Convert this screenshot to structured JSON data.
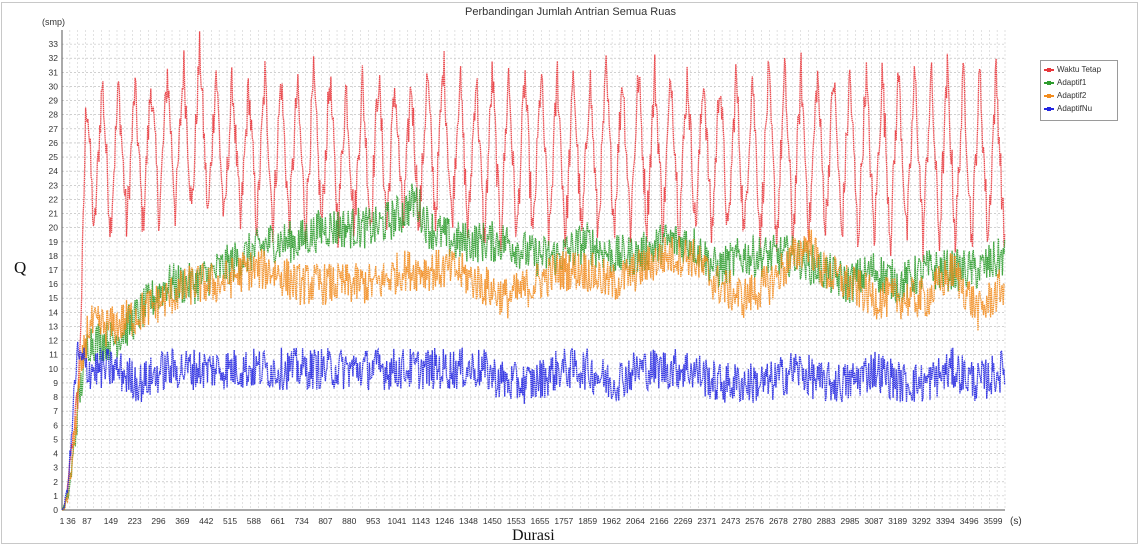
{
  "chart_data": {
    "type": "line",
    "title": "Perbandingan  Jumlah Antrian Semua Ruas",
    "xlabel": "Durasi",
    "ylabel": "Q",
    "y_unit": "(smp)",
    "x_unit": "(s)",
    "xlim": [
      1,
      3599
    ],
    "ylim": [
      0,
      34
    ],
    "grid": true,
    "legend_position": "top-right",
    "x_tick_labels": [
      "1",
      "36",
      "87",
      "149",
      "223",
      "296",
      "369",
      "442",
      "515",
      "588",
      "661",
      "734",
      "807",
      "880",
      "953",
      "1041",
      "1143",
      "1246",
      "1348",
      "1450",
      "1553",
      "1655",
      "1757",
      "1859",
      "1962",
      "2064",
      "2166",
      "2269",
      "2371",
      "2473",
      "2576",
      "2678",
      "2780",
      "2883",
      "2985",
      "3087",
      "3189",
      "3292",
      "3394",
      "3496",
      "3599"
    ],
    "y_tick_labels": [
      "0",
      "1",
      "2",
      "3",
      "4",
      "5",
      "6",
      "7",
      "8",
      "9",
      "10",
      "11",
      "12",
      "13",
      "14",
      "15",
      "16",
      "17",
      "18",
      "19",
      "20",
      "21",
      "22",
      "23",
      "24",
      "25",
      "26",
      "27",
      "28",
      "29",
      "30",
      "31",
      "32",
      "33"
    ],
    "series": [
      {
        "name": "Waktu Tetap",
        "color": "#e8373c",
        "x": [
          1,
          100,
          200,
          300,
          400,
          500,
          515,
          600,
          700,
          800,
          900,
          1000,
          1100,
          1200,
          1300,
          1400,
          1450,
          1500,
          1600,
          1700,
          1800,
          1900,
          2000,
          2100,
          2200,
          2300,
          2400,
          2500,
          2600,
          2700,
          2800,
          2900,
          3000,
          3100,
          3200,
          3300,
          3400,
          3500,
          3599
        ],
        "peak": [
          0,
          31,
          30,
          30,
          31,
          32,
          33,
          31,
          30,
          31,
          30,
          31,
          30,
          31,
          30,
          31,
          32,
          31,
          31,
          31,
          31,
          31,
          31,
          31,
          31,
          31,
          31,
          31,
          31,
          31,
          31,
          31,
          31,
          31,
          31,
          31,
          31,
          31,
          31
        ],
        "trough": [
          0,
          19,
          20,
          20,
          21,
          21,
          21,
          20,
          20,
          20,
          20,
          20,
          20,
          20,
          20,
          20,
          21,
          20,
          19,
          19,
          19,
          19,
          19,
          20,
          20,
          20,
          20,
          19,
          19,
          19,
          19,
          20,
          19,
          19,
          19,
          19,
          19,
          19,
          19
        ]
      },
      {
        "name": "Adaptif1",
        "color": "#2e9c2e",
        "x": [
          1,
          100,
          200,
          300,
          400,
          500,
          600,
          700,
          800,
          900,
          1000,
          1100,
          1200,
          1300,
          1350,
          1400,
          1500,
          1600,
          1700,
          1800,
          1900,
          2000,
          2100,
          2200,
          2300,
          2400,
          2500,
          2600,
          2700,
          2800,
          2900,
          3000,
          3100,
          3200,
          3300,
          3400,
          3500,
          3599
        ],
        "values": [
          0,
          12,
          12,
          14,
          16,
          16,
          17,
          18,
          19,
          19,
          20,
          20,
          20,
          21,
          22,
          20,
          19,
          19,
          19,
          18,
          18,
          19,
          18,
          18,
          19,
          19,
          17,
          18,
          18,
          18,
          17,
          16,
          17,
          16,
          17,
          17,
          17,
          18
        ]
      },
      {
        "name": "Adaptif2",
        "color": "#f28c1e",
        "x": [
          1,
          100,
          200,
          300,
          400,
          500,
          600,
          700,
          800,
          900,
          1000,
          1100,
          1200,
          1300,
          1400,
          1500,
          1600,
          1700,
          1800,
          1900,
          2000,
          2100,
          2200,
          2300,
          2400,
          2500,
          2600,
          2700,
          2800,
          2850,
          2900,
          3000,
          3100,
          3200,
          3300,
          3400,
          3500,
          3599
        ],
        "values": [
          0,
          13,
          13,
          14,
          15,
          16,
          16,
          17,
          17,
          16,
          16,
          16,
          16,
          17,
          17,
          17,
          16,
          15,
          16,
          17,
          17,
          16,
          17,
          18,
          18,
          16,
          15,
          16,
          18,
          19,
          17,
          16,
          15,
          15,
          15,
          17,
          14,
          16
        ]
      },
      {
        "name": "AdaptifNu",
        "color": "#2326e0",
        "x": [
          1,
          50,
          100,
          200,
          300,
          400,
          500,
          600,
          700,
          800,
          900,
          1000,
          1100,
          1200,
          1300,
          1400,
          1500,
          1600,
          1700,
          1800,
          1900,
          2000,
          2100,
          2200,
          2300,
          2400,
          2500,
          2600,
          2700,
          2800,
          2900,
          3000,
          3100,
          3200,
          3300,
          3400,
          3500,
          3599
        ],
        "values": [
          0,
          11,
          10,
          10,
          9,
          10,
          10,
          10,
          10,
          10,
          10,
          10,
          10,
          10,
          10,
          10,
          10,
          10,
          9,
          9,
          10,
          10,
          9,
          10,
          10,
          10,
          9,
          9,
          9,
          10,
          9,
          9,
          10,
          9,
          9,
          10,
          9,
          10
        ]
      }
    ]
  }
}
